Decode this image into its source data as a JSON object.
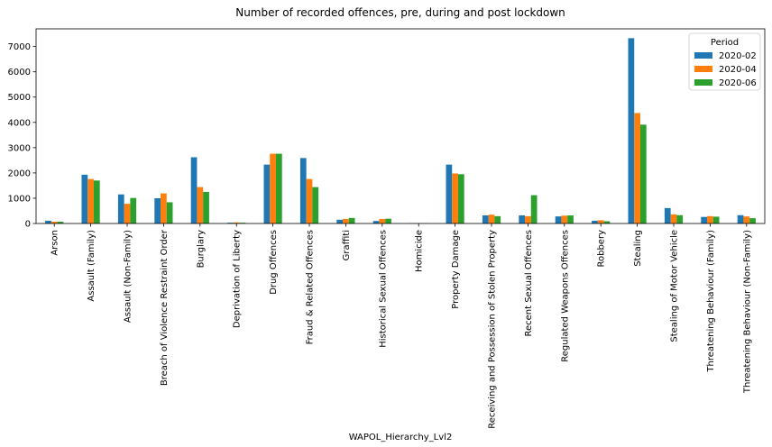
{
  "chart_data": {
    "type": "bar",
    "title": "Number of recorded offences, pre, during and post lockdown",
    "xlabel": "WAPOL_Hierarchy_Lvl2",
    "ylabel": "",
    "ylim": [
      0,
      7700
    ],
    "yticks": [
      0,
      1000,
      2000,
      3000,
      4000,
      5000,
      6000,
      7000
    ],
    "grid": false,
    "legend": {
      "title": "Period",
      "placement": "top-right"
    },
    "categories": [
      "Arson",
      "Assault (Family)",
      "Assault (Non-Family)",
      "Breach of Violence Restraint Order",
      "Burglary",
      "Deprivation of Liberty",
      "Drug Offences",
      "Fraud & Related Offences",
      "Graffiti",
      "Historical Sexual Offences",
      "Homicide",
      "Property Damage",
      "Receiving and Possession of Stolen Property",
      "Recent Sexual Offences",
      "Regulated Weapons Offences",
      "Robbery",
      "Stealing",
      "Stealing of Motor Vehicle",
      "Threatening Behaviour (Family)",
      "Threatening Behaviour (Non-Family)"
    ],
    "series": [
      {
        "name": "2020-02",
        "color": "#1f77b4",
        "values": [
          110,
          1930,
          1150,
          1000,
          2620,
          30,
          2330,
          2590,
          150,
          100,
          10,
          2330,
          320,
          320,
          280,
          110,
          7330,
          610,
          260,
          330
        ]
      },
      {
        "name": "2020-04",
        "color": "#ff7f0e",
        "values": [
          70,
          1760,
          780,
          1190,
          1440,
          40,
          2760,
          1760,
          180,
          180,
          10,
          1980,
          350,
          290,
          310,
          130,
          4370,
          360,
          290,
          280
        ]
      },
      {
        "name": "2020-06",
        "color": "#2ca02c",
        "values": [
          70,
          1700,
          1010,
          840,
          1250,
          30,
          2760,
          1440,
          220,
          190,
          10,
          1950,
          290,
          1120,
          320,
          90,
          3910,
          330,
          270,
          210
        ]
      }
    ]
  }
}
